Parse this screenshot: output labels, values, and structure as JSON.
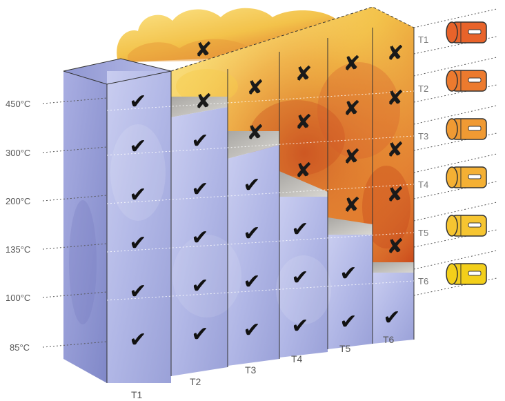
{
  "temperatures": [
    "450°C",
    "300°C",
    "200°C",
    "135°C",
    "100°C",
    "85°C"
  ],
  "columns": [
    "T1",
    "T2",
    "T3",
    "T4",
    "T5",
    "T6"
  ],
  "temp_classes": [
    "T1",
    "T2",
    "T3",
    "T4",
    "T5",
    "T6"
  ],
  "marks": {
    "pass_symbol": "✔",
    "fail_symbol": "✘"
  },
  "colors": {
    "safe_fill": "#b8bde6",
    "safe_front": "#9fa6dc",
    "fire_light": "#f6d360",
    "fire_dark": "#d65a1c",
    "bulb_t1": "#e8632a",
    "bulb_t2": "#ec7a2e",
    "bulb_t3": "#f09a33",
    "bulb_t4": "#f4b034",
    "bulb_t5": "#f6c531",
    "bulb_t6": "#f3cf1a"
  }
}
